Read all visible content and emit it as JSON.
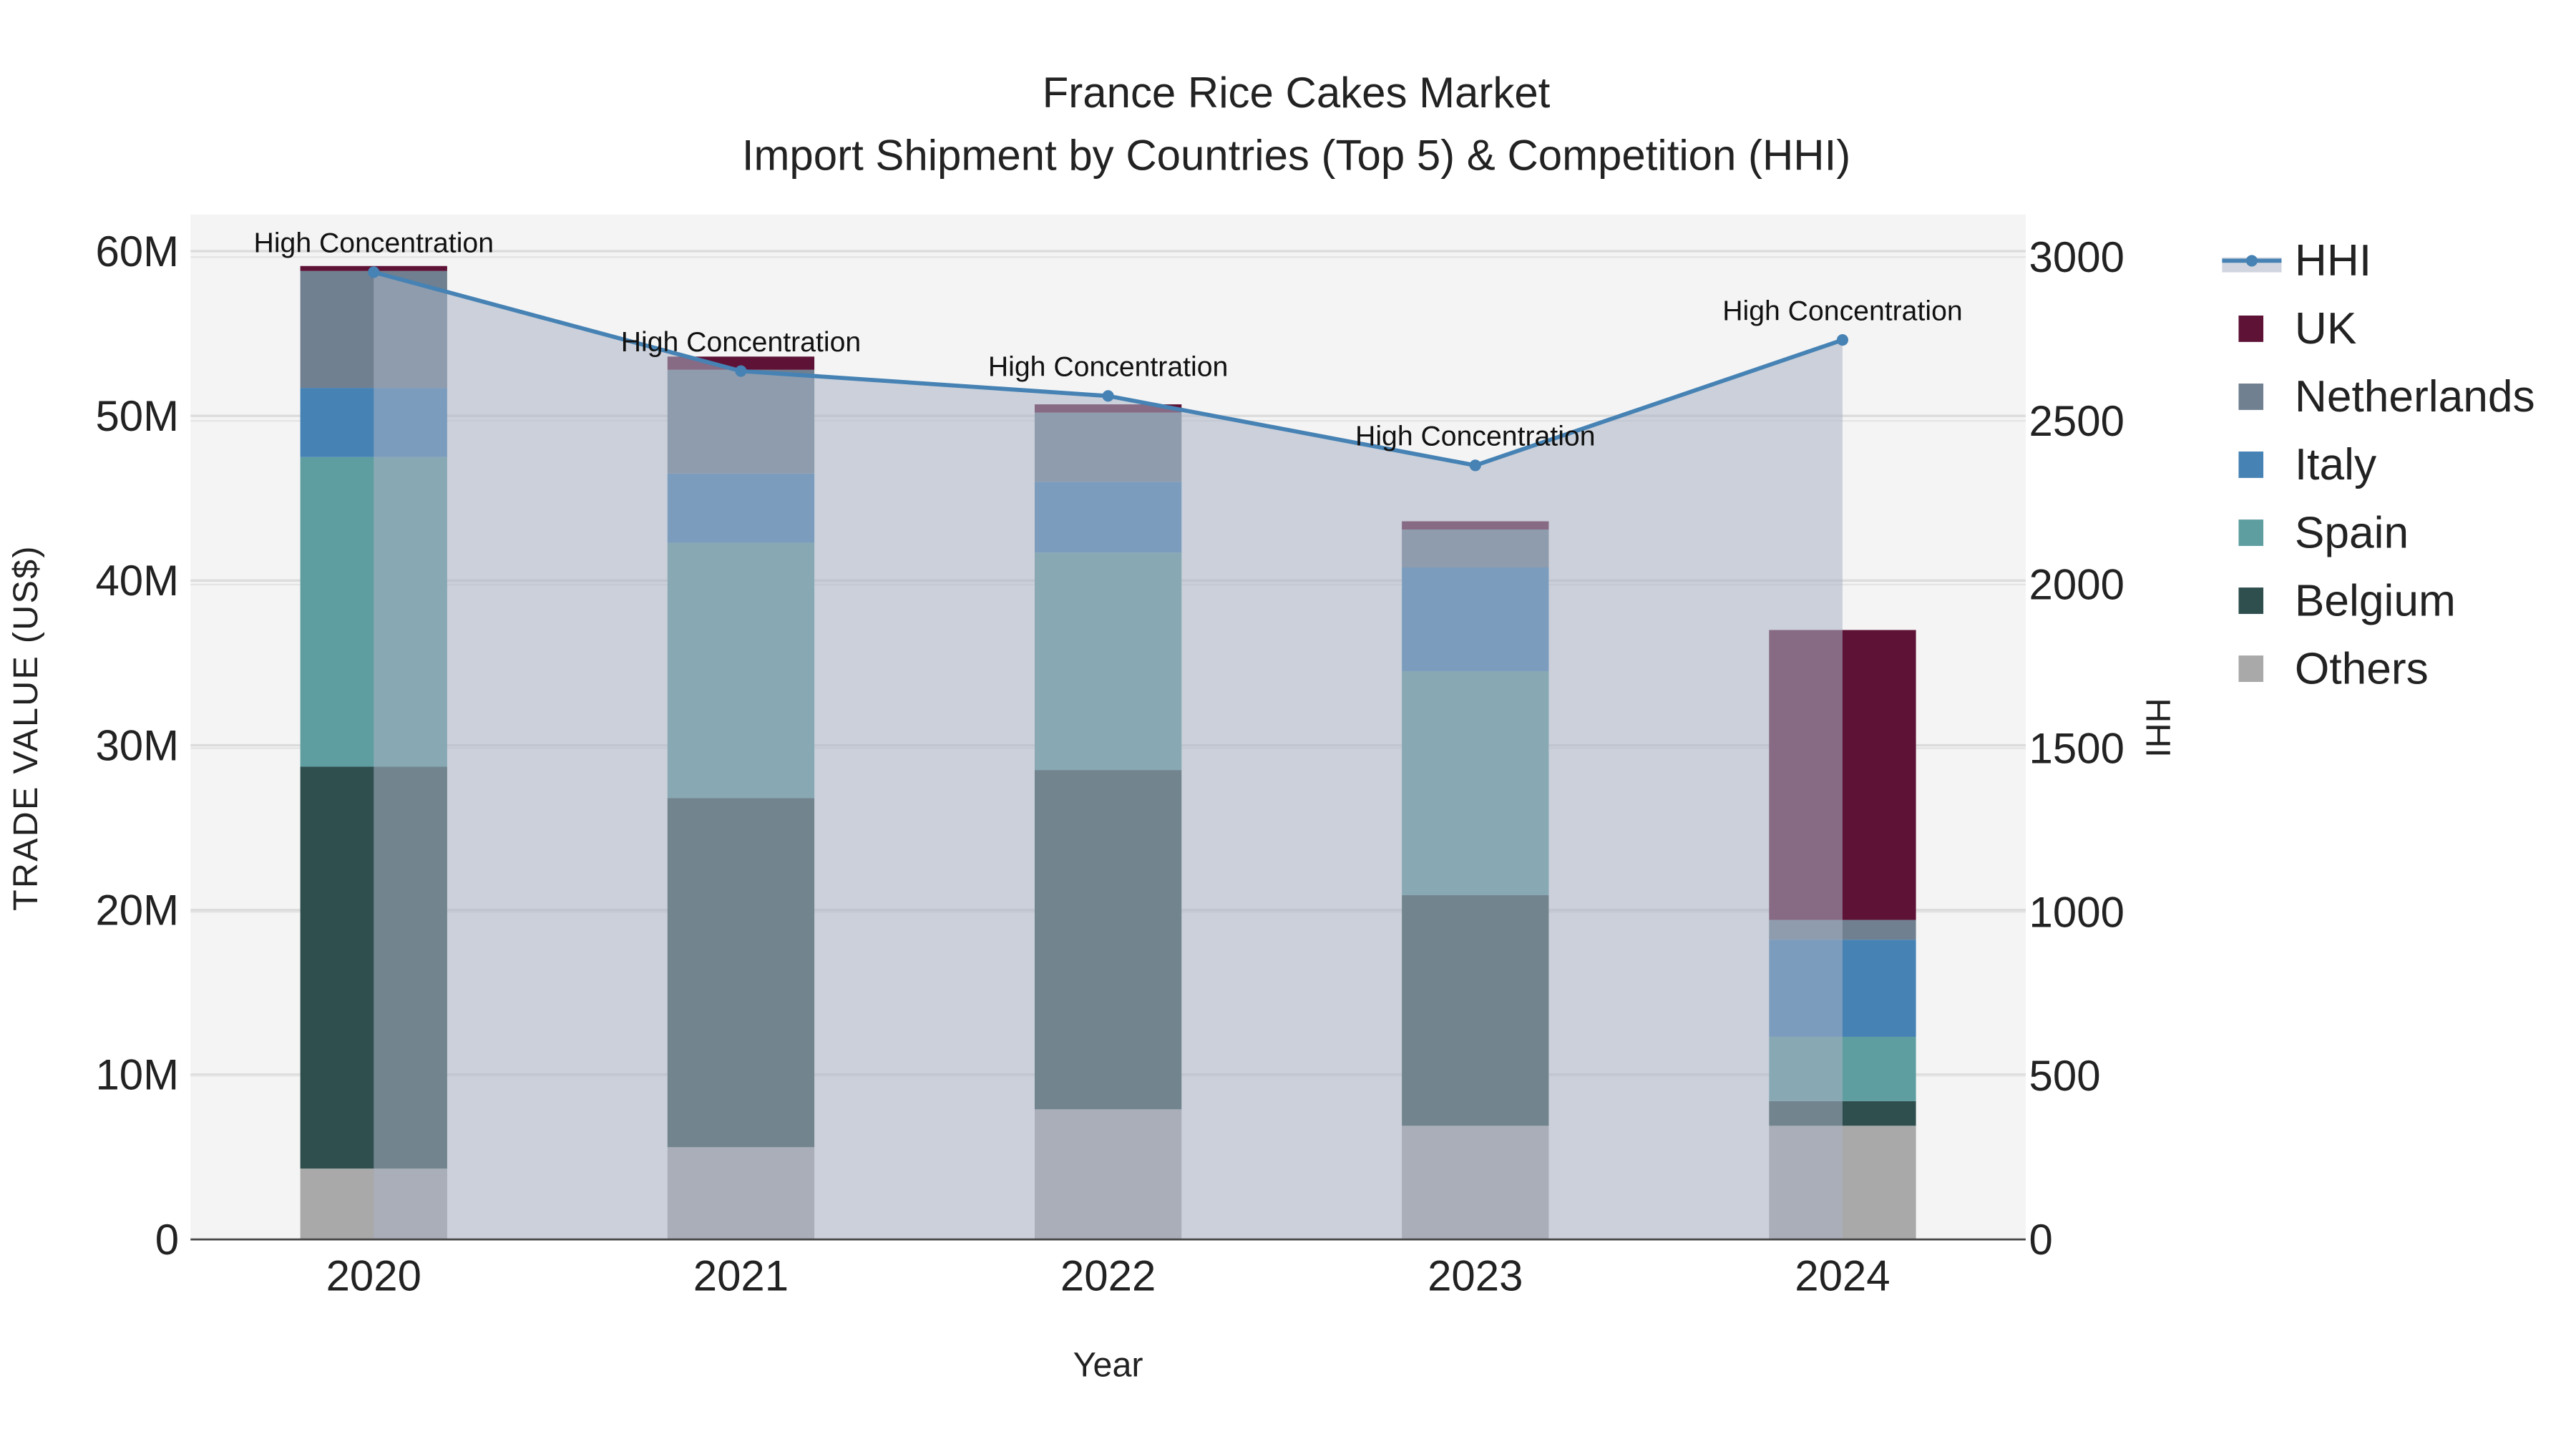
{
  "chart_data": {
    "type": "bar",
    "stacked": true,
    "title": "France Rice Cakes Market",
    "subtitle": "Import Shipment by Countries (Top 5) & Competition (HHI)",
    "xlabel": "Year",
    "ylabel": "TRADE VALUE (US$)",
    "y2label": "HHI",
    "categories": [
      "2020",
      "2021",
      "2022",
      "2023",
      "2024"
    ],
    "ylim": [
      0,
      62
    ],
    "y_ticks": [
      {
        "v": 0,
        "label": "0"
      },
      {
        "v": 10,
        "label": "10M"
      },
      {
        "v": 20,
        "label": "20M"
      },
      {
        "v": 30,
        "label": "30M"
      },
      {
        "v": 40,
        "label": "40M"
      },
      {
        "v": 50,
        "label": "50M"
      },
      {
        "v": 60,
        "label": "60M"
      }
    ],
    "y2lim": [
      0,
      3100
    ],
    "y2_ticks": [
      {
        "v": 0,
        "label": "0"
      },
      {
        "v": 500,
        "label": "500"
      },
      {
        "v": 1000,
        "label": "1000"
      },
      {
        "v": 1500,
        "label": "1500"
      },
      {
        "v": 2000,
        "label": "2000"
      },
      {
        "v": 2500,
        "label": "2500"
      },
      {
        "v": 3000,
        "label": "3000"
      }
    ],
    "value_unit": "million US$",
    "series": [
      {
        "name": "Others",
        "color": "#a9a9a9",
        "values": [
          4.3,
          5.6,
          7.9,
          6.9,
          6.9
        ]
      },
      {
        "name": "Belgium",
        "color": "#2f4f4f",
        "values": [
          24.4,
          21.2,
          20.6,
          14.0,
          1.5
        ]
      },
      {
        "name": "Spain",
        "color": "#5f9ea0",
        "values": [
          18.8,
          15.5,
          13.2,
          13.6,
          3.9
        ]
      },
      {
        "name": "Italy",
        "color": "#4682b4",
        "values": [
          4.2,
          4.2,
          4.3,
          6.3,
          5.9
        ]
      },
      {
        "name": "Netherlands",
        "color": "#708090",
        "values": [
          7.1,
          6.3,
          4.2,
          2.3,
          1.2
        ]
      },
      {
        "name": "UK",
        "color": "#5e1236",
        "values": [
          0.3,
          0.8,
          0.5,
          0.5,
          17.6
        ]
      }
    ],
    "hhi": {
      "name": "HHI",
      "color": "#4682b4",
      "values": [
        2954,
        2652,
        2576,
        2364,
        2747
      ]
    },
    "annotations": [
      "High Concentration",
      "High Concentration",
      "High Concentration",
      "High Concentration",
      "High Concentration"
    ],
    "legend": {
      "placement": "right",
      "items": [
        "HHI",
        "UK",
        "Netherlands",
        "Italy",
        "Spain",
        "Belgium",
        "Others"
      ]
    },
    "grid": true
  }
}
